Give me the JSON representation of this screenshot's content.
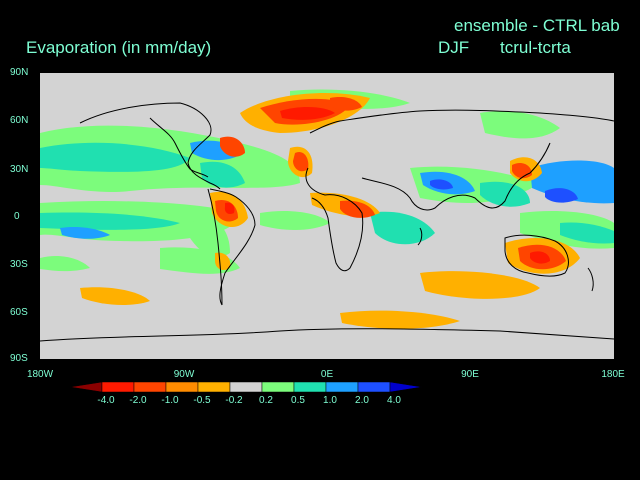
{
  "header": {
    "title": "Evaporation (in mm/day)",
    "ensemble_label": "ensemble - CTRL bab",
    "season": "DJF",
    "experiment": "tcrul-tcrta"
  },
  "axes": {
    "y_ticks": [
      "90N",
      "60N",
      "30N",
      "0",
      "30S",
      "60S",
      "90S"
    ],
    "x_ticks": [
      "180W",
      "90W",
      "0E",
      "90E",
      "180E"
    ]
  },
  "colorbar": {
    "labels": [
      "-4.0",
      "-2.0",
      "-1.0",
      "-0.5",
      "-0.2",
      "0.2",
      "0.5",
      "1.0",
      "2.0",
      "4.0"
    ],
    "colors": [
      "#8b0000",
      "#ff1a00",
      "#ff4500",
      "#ff8c00",
      "#ffb000",
      "#d3d3d3",
      "#7cfc7c",
      "#20e0b0",
      "#1ea0ff",
      "#1e50ff",
      "#0000cd"
    ]
  },
  "map_colors": {
    "background": "#d3d3d3",
    "coastline": "#000000"
  }
}
